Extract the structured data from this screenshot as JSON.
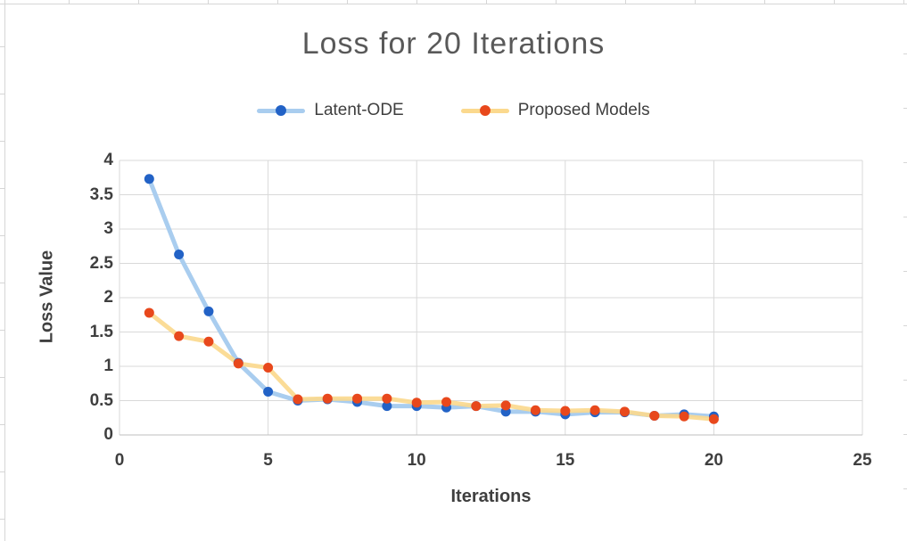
{
  "chart_data": {
    "type": "line",
    "title": "Loss for 20 Iterations",
    "xlabel": "Iterations",
    "ylabel": "Loss Value",
    "x": [
      1,
      2,
      3,
      4,
      5,
      6,
      7,
      8,
      9,
      10,
      11,
      12,
      13,
      14,
      15,
      16,
      17,
      18,
      19,
      20
    ],
    "series": [
      {
        "name": "Latent-ODE",
        "line_color": "#a9cdef",
        "marker_color": "#2262c6",
        "values": [
          3.73,
          2.63,
          1.8,
          1.05,
          0.63,
          0.5,
          0.52,
          0.48,
          0.42,
          0.42,
          0.4,
          0.42,
          0.34,
          0.34,
          0.3,
          0.33,
          0.33,
          0.28,
          0.3,
          0.27
        ]
      },
      {
        "name": "Proposed Models",
        "line_color": "#fbd98e",
        "marker_color": "#e8481c",
        "values": [
          1.78,
          1.44,
          1.36,
          1.04,
          0.98,
          0.52,
          0.53,
          0.53,
          0.53,
          0.47,
          0.48,
          0.42,
          0.43,
          0.36,
          0.35,
          0.36,
          0.34,
          0.28,
          0.27,
          0.23
        ]
      }
    ],
    "xlim": [
      0,
      25
    ],
    "ylim": [
      0,
      4
    ],
    "x_ticks": [
      0,
      5,
      10,
      15,
      20,
      25
    ],
    "y_ticks": [
      0,
      0.5,
      1,
      1.5,
      2,
      2.5,
      3,
      3.5,
      4
    ],
    "grid": true,
    "legend_position": "top",
    "gridline_color": "#d9d9d9",
    "axis_line_color": "#bfbfbf",
    "title_color": "#595959",
    "label_color": "#3f3f3f"
  }
}
